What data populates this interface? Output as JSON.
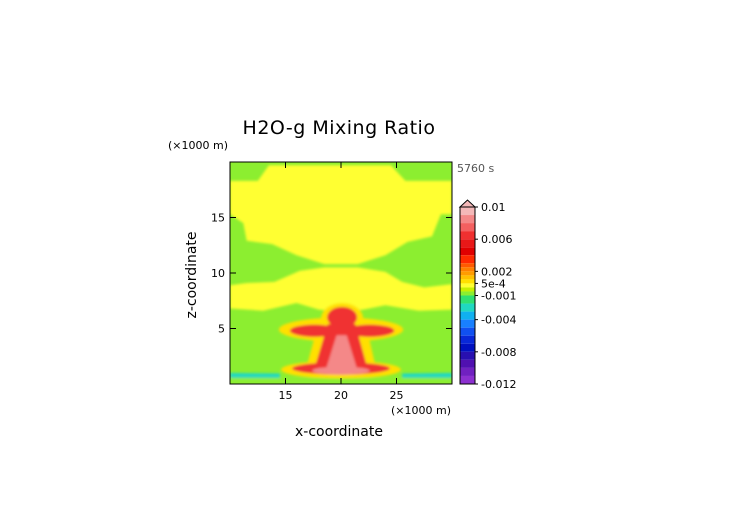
{
  "chart_data": {
    "type": "heatmap",
    "title": "H2O-g Mixing Ratio",
    "xlabel": "x-coordinate",
    "ylabel": "z-coordinate",
    "x_unit": "(×1000 m)",
    "y_unit": "(×1000 m)",
    "time_label": "5760 s",
    "xlim": [
      10,
      30
    ],
    "ylim": [
      0,
      20
    ],
    "x_ticks": [
      "15",
      "20",
      "25"
    ],
    "y_ticks": [
      "5",
      "10",
      "15"
    ],
    "x_tick_values": [
      15,
      20,
      25
    ],
    "y_tick_values": [
      5,
      10,
      15
    ],
    "colorbar": {
      "labels": [
        "0.01",
        "0.006",
        "0.002",
        "5e-4",
        "-0.001",
        "-0.004",
        "-0.008",
        "-0.012"
      ],
      "label_values": [
        0.01,
        0.006,
        0.002,
        0.0005,
        -0.001,
        -0.004,
        -0.008,
        -0.012
      ],
      "min": -0.012,
      "max": 0.01,
      "extend": "max",
      "levels": [
        {
          "from": 0.009,
          "to": 0.01,
          "color": "#f4b8b8"
        },
        {
          "from": 0.008,
          "to": 0.009,
          "color": "#f48888"
        },
        {
          "from": 0.007,
          "to": 0.008,
          "color": "#f46060"
        },
        {
          "from": 0.006,
          "to": 0.007,
          "color": "#f03030"
        },
        {
          "from": 0.005,
          "to": 0.006,
          "color": "#e81818"
        },
        {
          "from": 0.004,
          "to": 0.005,
          "color": "#e00000"
        },
        {
          "from": 0.003,
          "to": 0.004,
          "color": "#ff2a00"
        },
        {
          "from": 0.0025,
          "to": 0.003,
          "color": "#ff5a00"
        },
        {
          "from": 0.002,
          "to": 0.0025,
          "color": "#ff8000"
        },
        {
          "from": 0.0015,
          "to": 0.002,
          "color": "#ff9c00"
        },
        {
          "from": 0.001,
          "to": 0.0015,
          "color": "#ffc000"
        },
        {
          "from": 0.0005,
          "to": 0.001,
          "color": "#ffe000"
        },
        {
          "from": 0.0,
          "to": 0.0005,
          "color": "#ffff30"
        },
        {
          "from": -0.0005,
          "to": 0.0,
          "color": "#c8f000"
        },
        {
          "from": -0.001,
          "to": -0.0005,
          "color": "#8cee30"
        },
        {
          "from": -0.002,
          "to": -0.001,
          "color": "#30e070"
        },
        {
          "from": -0.003,
          "to": -0.002,
          "color": "#20d8c0"
        },
        {
          "from": -0.004,
          "to": -0.003,
          "color": "#10b0f0"
        },
        {
          "from": -0.005,
          "to": -0.004,
          "color": "#1880ff"
        },
        {
          "from": -0.006,
          "to": -0.005,
          "color": "#1050f0"
        },
        {
          "from": -0.007,
          "to": -0.006,
          "color": "#0828d8"
        },
        {
          "from": -0.008,
          "to": -0.007,
          "color": "#0010c0"
        },
        {
          "from": -0.009,
          "to": -0.008,
          "color": "#2810b0"
        },
        {
          "from": -0.01,
          "to": -0.009,
          "color": "#5010b0"
        },
        {
          "from": -0.011,
          "to": -0.01,
          "color": "#7020c0"
        },
        {
          "from": -0.012,
          "to": -0.011,
          "color": "#8c30d0"
        }
      ]
    },
    "field_regions": [
      {
        "name": "background",
        "color": "#8cee30"
      },
      {
        "name": "upper-moist-layer",
        "color": "#ffff30"
      },
      {
        "name": "lower-moist-layer",
        "color": "#ffff30"
      },
      {
        "name": "plume-outer",
        "color": "#ffe000"
      },
      {
        "name": "plume-core",
        "color": "#f03030"
      },
      {
        "name": "plume-base",
        "color": "#f48888"
      },
      {
        "name": "surface-dry-band",
        "color": "#20d8c0"
      }
    ]
  }
}
